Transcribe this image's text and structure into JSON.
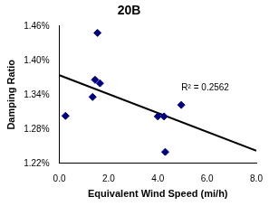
{
  "chart_data": {
    "type": "scatter",
    "title": "20B",
    "x_label": "Equivalent Wind Speed (mi/h)",
    "y_label": "Damping Ratio",
    "x": [
      0.25,
      1.35,
      1.45,
      1.55,
      1.65,
      4.0,
      4.25,
      4.3,
      4.95
    ],
    "values": [
      1.303,
      1.336,
      1.366,
      1.448,
      1.36,
      1.302,
      1.302,
      1.24,
      1.322
    ],
    "color": "#000080",
    "marker": "diamond",
    "trendline": {
      "x": [
        0,
        8
      ],
      "values": [
        1.374,
        1.242
      ],
      "color": "#000000"
    },
    "annotation": "R² = 0.2562",
    "xlim": [
      0,
      8
    ],
    "xticks": [
      {
        "value": 0,
        "label": "0.0"
      },
      {
        "value": 2,
        "label": "2.0"
      },
      {
        "value": 4,
        "label": "4.0"
      },
      {
        "value": 6,
        "label": "6.0"
      },
      {
        "value": 8,
        "label": "8.0"
      }
    ],
    "ylim": [
      1.22,
      1.46
    ],
    "yticks": [
      {
        "value": 1.22,
        "label": "1.22%"
      },
      {
        "value": 1.28,
        "label": "1.28%"
      },
      {
        "value": 1.34,
        "label": "1.34%"
      },
      {
        "value": 1.4,
        "label": "1.40%"
      },
      {
        "value": 1.46,
        "label": "1.46%"
      }
    ],
    "grid": false
  }
}
